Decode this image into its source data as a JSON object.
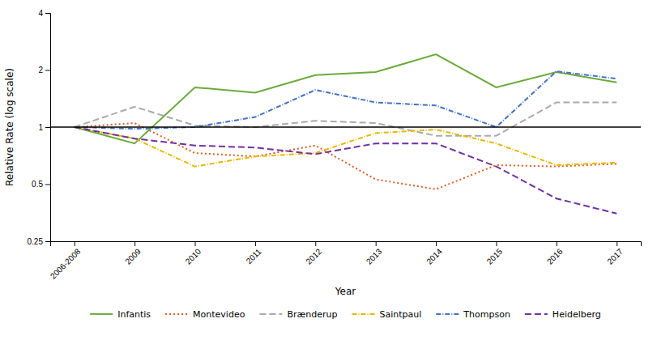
{
  "chart_data": {
    "type": "line",
    "categories": [
      "2006-2008",
      "2009",
      "2010",
      "2011",
      "2012",
      "2013",
      "2014",
      "2015",
      "2016",
      "2017"
    ],
    "series": [
      {
        "name": "Infantis",
        "color": "#6aaa3a",
        "line_style": "solid",
        "values": [
          1.0,
          0.82,
          1.62,
          1.52,
          1.88,
          1.95,
          2.42,
          1.62,
          1.95,
          1.72
        ]
      },
      {
        "name": "Montevideo",
        "color": "#e05c27",
        "line_style": "dotted",
        "values": [
          1.0,
          1.05,
          0.73,
          0.7,
          0.8,
          0.53,
          0.47,
          0.63,
          0.62,
          0.64
        ]
      },
      {
        "name": "Brænderup",
        "color": "#aaaaaa",
        "line_style": "dashed",
        "values": [
          1.0,
          1.28,
          1.02,
          1.0,
          1.08,
          1.05,
          0.9,
          0.9,
          1.35,
          1.35
        ]
      },
      {
        "name": "Saintpaul",
        "color": "#e6b800",
        "line_style": "dashdot",
        "values": [
          1.0,
          0.87,
          0.62,
          0.7,
          0.73,
          0.93,
          0.97,
          0.82,
          0.63,
          0.65
        ]
      },
      {
        "name": "Thompson",
        "color": "#4472c4",
        "line_style": "dashdot",
        "values": [
          1.0,
          0.98,
          1.0,
          1.13,
          1.57,
          1.35,
          1.3,
          1.0,
          1.97,
          1.8
        ]
      },
      {
        "name": "Heidelberg",
        "color": "#7030a0",
        "line_style": "dashed",
        "values": [
          1.0,
          0.87,
          0.8,
          0.78,
          0.72,
          0.82,
          0.82,
          0.62,
          0.42,
          0.35
        ]
      }
    ],
    "reference_line": 1.0,
    "x_label": "Year",
    "y_label": "Relative Rate (log scale)",
    "log": "y",
    "ylim": [
      0.25,
      4
    ],
    "yticks": [
      0.25,
      0.5,
      1,
      2,
      4
    ],
    "grid": false,
    "legend": "bottom"
  }
}
